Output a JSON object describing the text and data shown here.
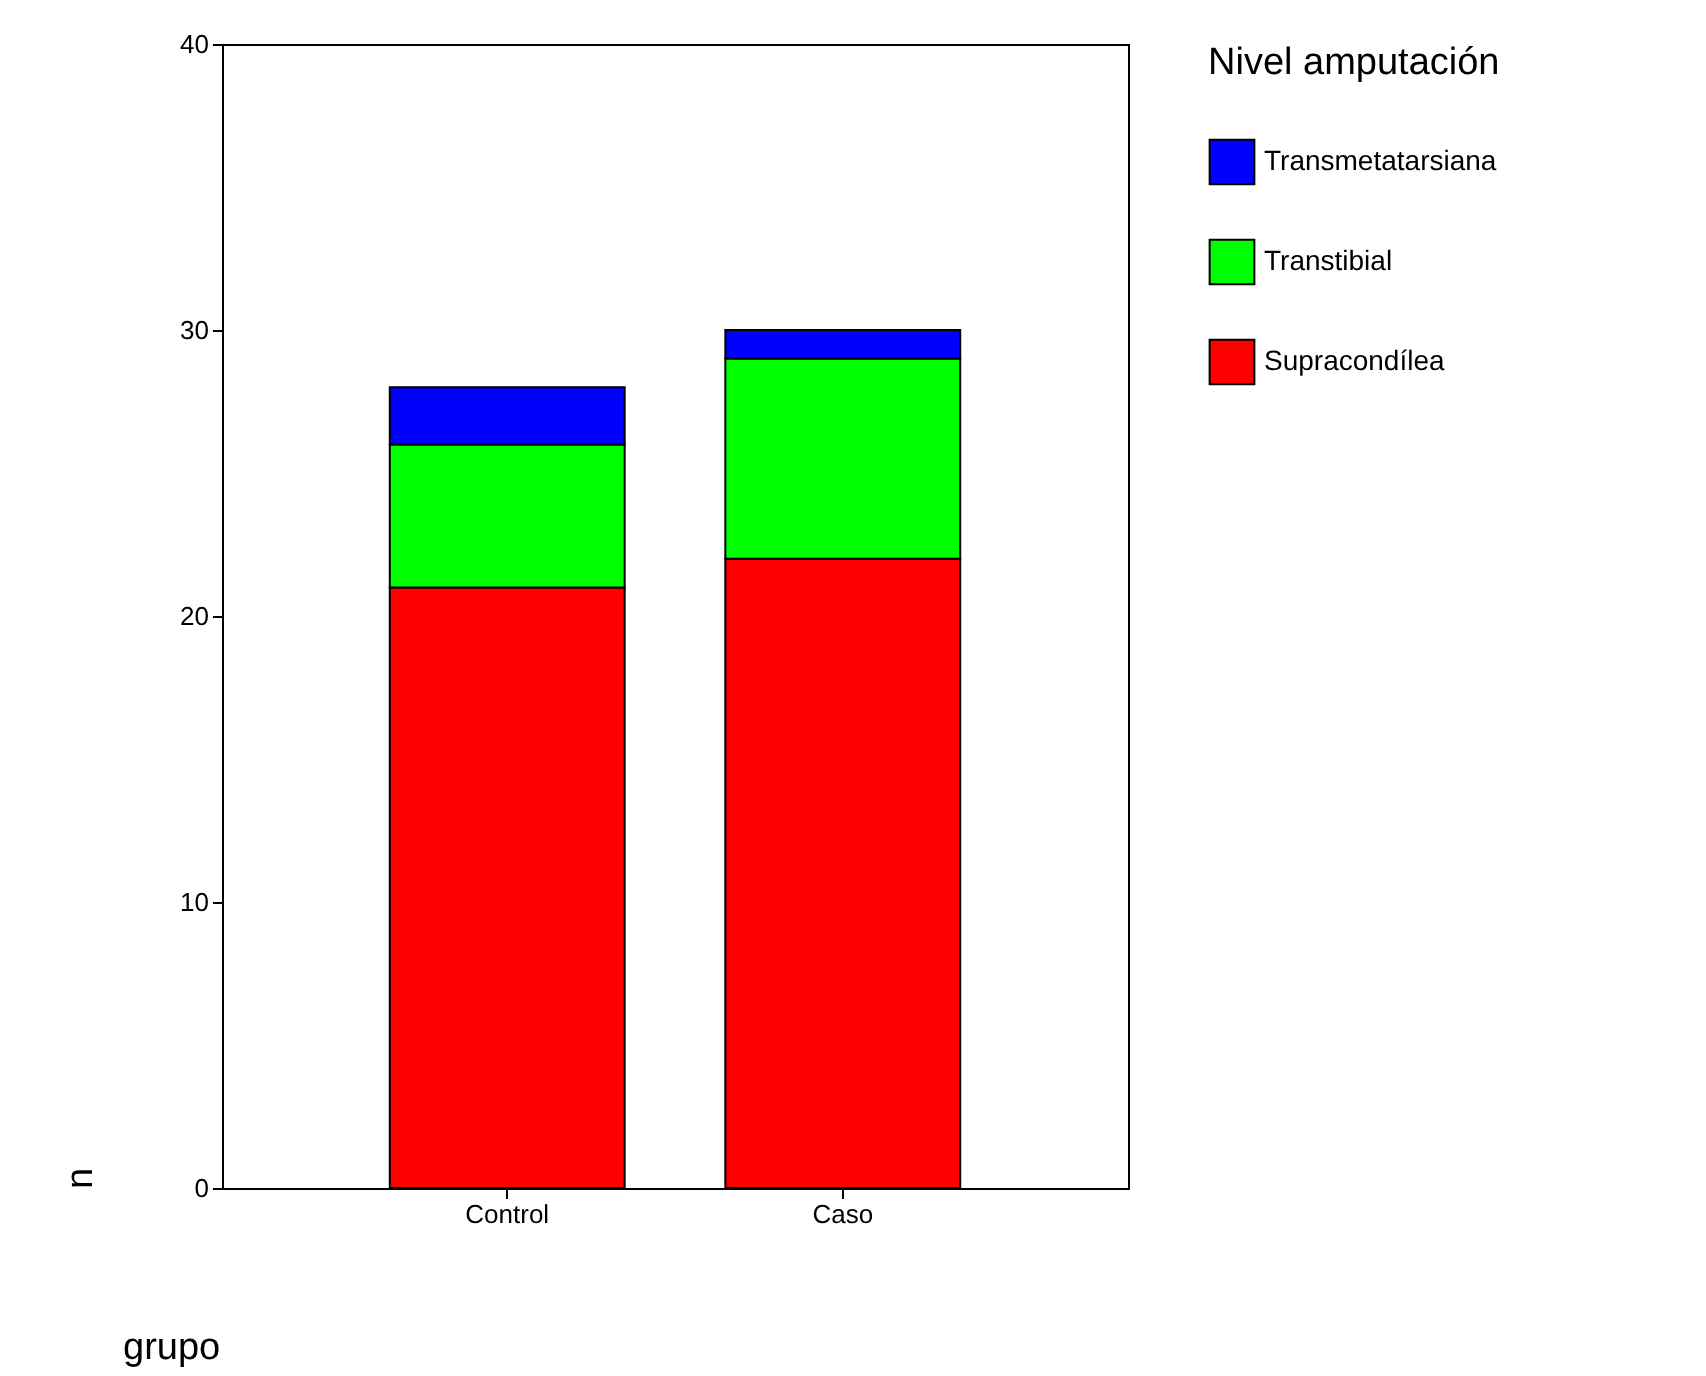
{
  "chart_data": {
    "type": "bar",
    "stacked": true,
    "xlabel": "grupo",
    "ylabel": "n",
    "legend_title": "Nivel amputación",
    "legend": "right",
    "categories": [
      "Control",
      "Caso"
    ],
    "ylim": [
      0,
      40
    ],
    "yticks": [
      0,
      10,
      20,
      30,
      40
    ],
    "series": [
      {
        "name": "Supracondílea",
        "color": "#ff0000",
        "values": [
          21,
          22
        ]
      },
      {
        "name": "Transtibial",
        "color": "#00ff00",
        "values": [
          5,
          7
        ]
      },
      {
        "name": "Transmetatarsiana",
        "color": "#0000ff",
        "values": [
          2,
          1
        ]
      }
    ]
  }
}
